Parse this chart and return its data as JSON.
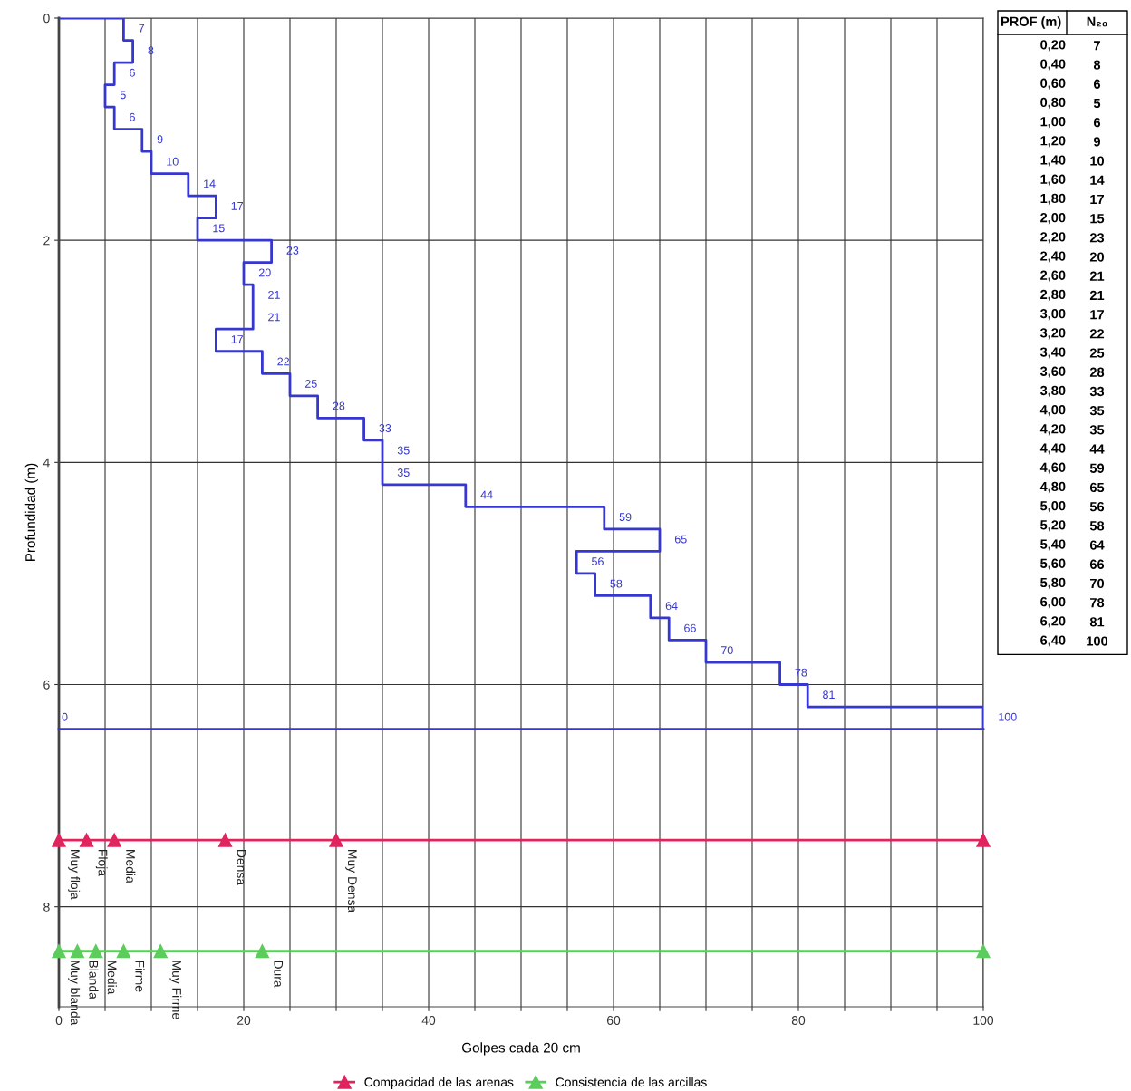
{
  "chart_data": [
    {
      "type": "step",
      "orientation": "horizontal",
      "xlabel": "Golpes cada 20 cm",
      "ylabel": "Profundidad (m)",
      "xlim": [
        0,
        100
      ],
      "xticks": [
        0,
        {
          "value": 5,
          "label": null
        },
        {
          "value": 10,
          "label": null
        },
        {
          "value": 15,
          "label": null
        },
        20,
        {
          "value": 25,
          "label": null
        },
        {
          "value": 30,
          "label": null
        },
        {
          "value": 35,
          "label": null
        },
        40,
        {
          "value": 45,
          "label": null
        },
        {
          "value": 50,
          "label": null
        },
        {
          "value": 55,
          "label": null
        },
        60,
        {
          "value": 65,
          "label": null
        },
        {
          "value": 70,
          "label": null
        },
        {
          "value": 75,
          "label": null
        },
        80,
        {
          "value": 85,
          "label": null
        },
        {
          "value": 90,
          "label": null
        },
        {
          "value": 95,
          "label": null
        },
        100
      ],
      "ylim": [
        8.9,
        0
      ],
      "yticks": [
        0,
        2,
        4,
        6,
        8
      ],
      "grid": true,
      "legend": "bottom",
      "series": [
        {
          "color": "#3636d0",
          "x": [
            0,
            0.2,
            0.4,
            0.6,
            0.8,
            1.0,
            1.2,
            1.4,
            1.6,
            1.8,
            2.0,
            2.2,
            2.4,
            2.6,
            2.8,
            3.0,
            3.2,
            3.4,
            3.6,
            3.8,
            4.0,
            4.2,
            4.4,
            4.6,
            4.8,
            5.0,
            5.2,
            5.4,
            5.6,
            5.8,
            6.0,
            6.2,
            6.4
          ],
          "values": [
            0,
            7,
            8,
            6,
            5,
            6,
            9,
            10,
            14,
            17,
            15,
            23,
            20,
            21,
            21,
            17,
            22,
            25,
            28,
            33,
            35,
            35,
            44,
            59,
            65,
            56,
            58,
            64,
            66,
            70,
            78,
            81,
            100
          ],
          "value_labels": [
            null,
            "7",
            "8",
            "6",
            "5",
            "6",
            "9",
            "10",
            "14",
            "17",
            "15",
            "23",
            "20",
            "21",
            "21",
            "17",
            "22",
            "25",
            "28",
            "33",
            "35",
            "35",
            "44",
            "59",
            "65",
            "56",
            "58",
            "64",
            "66",
            "70",
            "78",
            "81",
            "100"
          ]
        },
        {
          "type": "line",
          "color": "#3636d0",
          "x": [
            6.4,
            6.4
          ],
          "values": [
            100,
            0
          ],
          "marker": "none",
          "value_labels": [
            null,
            "0"
          ]
        },
        {
          "type": "line",
          "name": "Compacidad de las arenas",
          "color": "#e0245e",
          "marker": "triangle",
          "x": [
            7.4,
            7.4,
            7.4,
            7.4,
            7.4,
            7.4
          ],
          "values": [
            0,
            3,
            6,
            18,
            30,
            100
          ],
          "value_labels": [
            "Muy floja",
            "Floja",
            "Media",
            "Densa",
            "Muy Densa",
            null
          ]
        },
        {
          "type": "line",
          "name": "Consistencia de las arcillas",
          "color": "#5ccc5c",
          "marker": "triangle",
          "x": [
            8.4,
            8.4,
            8.4,
            8.4,
            8.4,
            8.4,
            8.4
          ],
          "values": [
            0,
            2,
            4,
            7,
            11,
            22,
            100
          ],
          "value_labels": [
            "Muy blanda",
            "Blanda",
            "Media",
            "Firme",
            "Muy Firme",
            "Dura",
            null
          ]
        }
      ]
    },
    {
      "type": "heatmap",
      "annotations": [
        "PROF (m)"
      ],
      "categories": [
        "N₂₀"
      ],
      "data_labels": true,
      "y_categories": [
        "0,20",
        "0,40",
        "0,60",
        "0,80",
        "1,00",
        "1,20",
        "1,40",
        "1,60",
        "1,80",
        "2,00",
        "2,20",
        "2,40",
        "2,60",
        "2,80",
        "3,00",
        "3,20",
        "3,40",
        "3,60",
        "3,80",
        "4,00",
        "4,20",
        "4,40",
        "4,60",
        "4,80",
        "5,00",
        "5,20",
        "5,40",
        "5,60",
        "5,80",
        "6,00",
        "6,20",
        "6,40"
      ],
      "cells": [
        [
          7
        ],
        [
          8
        ],
        [
          6
        ],
        [
          5
        ],
        [
          6
        ],
        [
          9
        ],
        [
          10
        ],
        [
          14
        ],
        [
          17
        ],
        [
          15
        ],
        [
          23
        ],
        [
          20
        ],
        [
          21
        ],
        [
          21
        ],
        [
          17
        ],
        [
          22
        ],
        [
          25
        ],
        [
          28
        ],
        [
          33
        ],
        [
          35
        ],
        [
          35
        ],
        [
          44
        ],
        [
          59
        ],
        [
          65
        ],
        [
          56
        ],
        [
          58
        ],
        [
          64
        ],
        [
          66
        ],
        [
          70
        ],
        [
          78
        ],
        [
          81
        ],
        [
          100
        ]
      ]
    }
  ]
}
